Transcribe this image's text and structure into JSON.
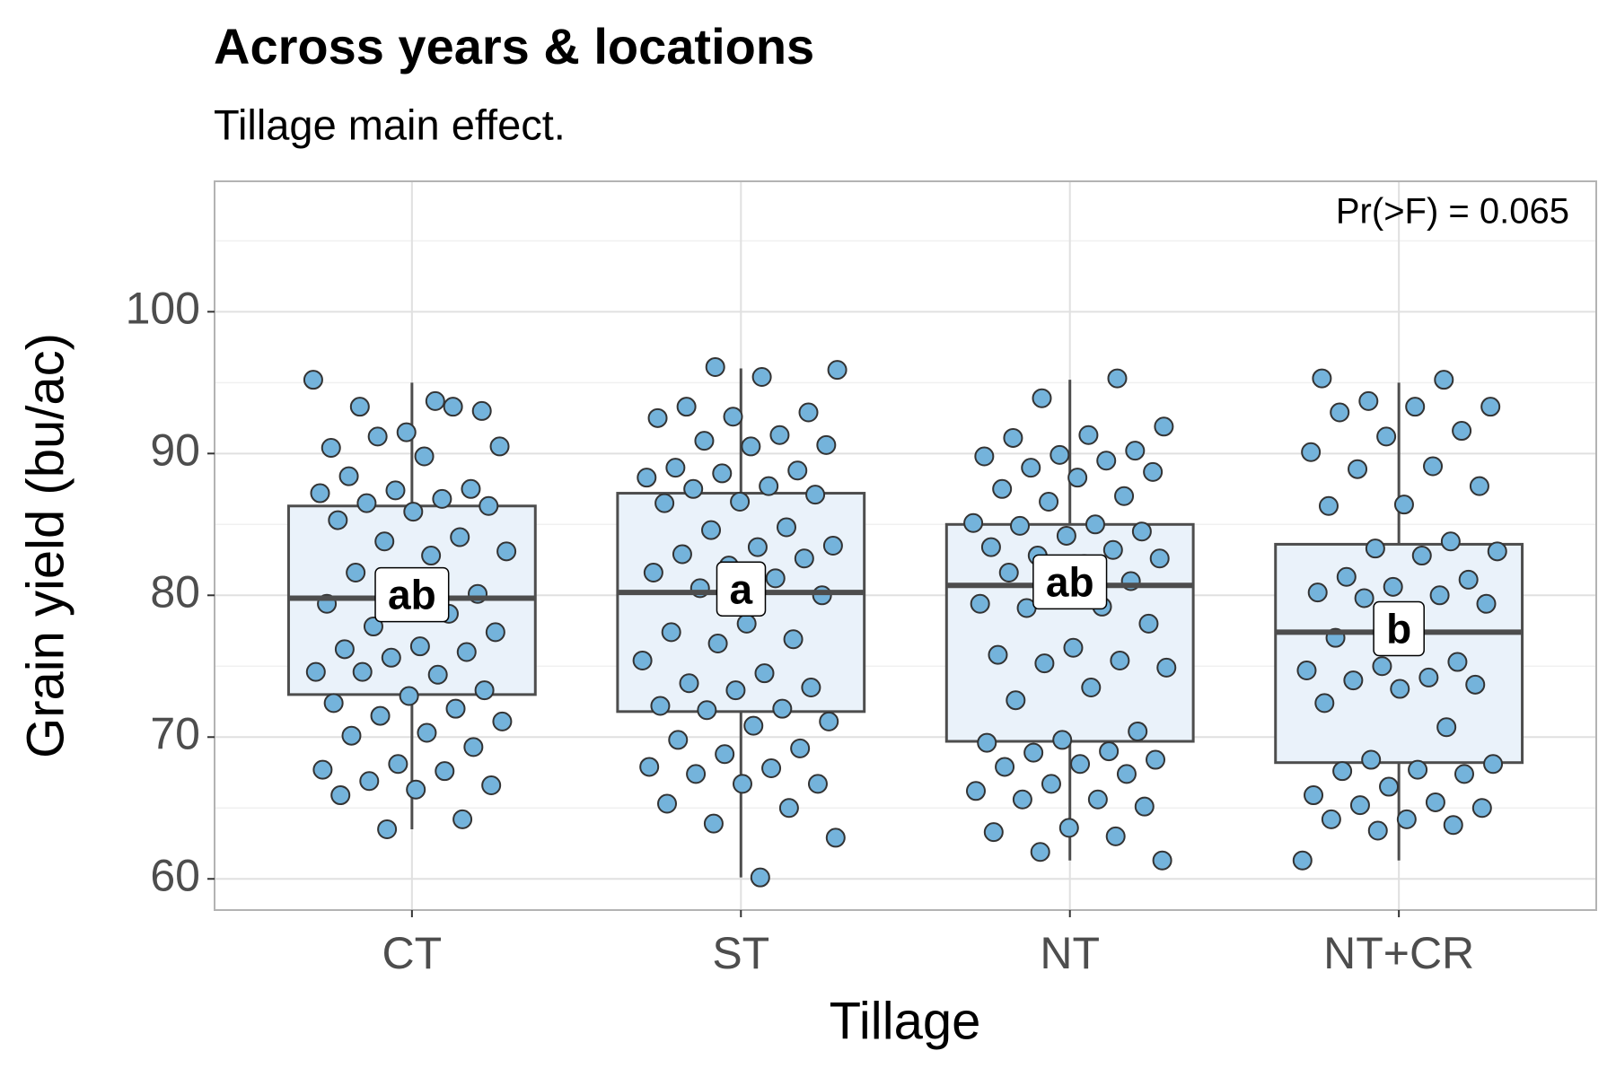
{
  "chart_data": {
    "type": "boxplot",
    "title": "Across years & locations",
    "subtitle": "Tillage main effect.",
    "x_label": "Tillage",
    "y_label": "Grain yield (bu/ac)",
    "annotation": "Pr(>F) = 0.065",
    "categories": [
      "CT",
      "ST",
      "NT",
      "NT+CR"
    ],
    "ylim": [
      57.8,
      109.2
    ],
    "yticks": [
      60,
      70,
      80,
      90,
      100
    ],
    "grid": true,
    "box_color": "#eaf2fa",
    "point_color": "#74b3db",
    "boxes": [
      {
        "whisker_low": 63.5,
        "q1": 73.0,
        "median": 79.8,
        "q3": 86.3,
        "whisker_high": 95.0,
        "letter": "ab"
      },
      {
        "whisker_low": 60.1,
        "q1": 71.8,
        "median": 80.2,
        "q3": 87.2,
        "whisker_high": 96.0,
        "letter": "a"
      },
      {
        "whisker_low": 61.3,
        "q1": 69.7,
        "median": 80.7,
        "q3": 85.0,
        "whisker_high": 95.2,
        "letter": "ab"
      },
      {
        "whisker_low": 61.3,
        "q1": 68.2,
        "median": 77.4,
        "q3": 83.6,
        "whisker_high": 95.0,
        "letter": "b"
      }
    ],
    "points": [
      [
        95.2,
        93.7,
        93.3,
        93.0,
        91.5,
        90.4,
        93.3,
        91.2,
        90.5,
        89.8,
        88.4,
        87.5,
        87.4,
        87.2,
        86.8,
        86.5,
        86.3,
        85.9,
        85.3,
        84.1,
        83.8,
        83.1,
        82.8,
        81.6,
        80.1,
        80.0,
        79.4,
        78.7,
        77.8,
        77.4,
        76.4,
        76.2,
        76.0,
        75.6,
        74.6,
        74.4,
        74.6,
        73.3,
        72.9,
        72.4,
        72.0,
        71.5,
        71.1,
        70.3,
        70.1,
        69.3,
        68.1,
        67.7,
        67.6,
        66.9,
        66.6,
        66.3,
        65.9,
        64.2,
        63.5
      ],
      [
        96.1,
        95.9,
        95.4,
        93.3,
        92.9,
        92.6,
        92.5,
        91.3,
        90.9,
        90.6,
        90.5,
        89.0,
        88.8,
        88.6,
        88.3,
        87.7,
        87.5,
        87.1,
        86.6,
        86.5,
        84.8,
        84.6,
        83.5,
        83.4,
        82.9,
        82.6,
        82.1,
        81.6,
        81.2,
        80.5,
        80.0,
        78.0,
        77.4,
        76.9,
        76.6,
        75.4,
        74.5,
        73.8,
        73.5,
        73.3,
        72.2,
        72.0,
        71.9,
        71.1,
        70.8,
        69.8,
        69.2,
        68.8,
        67.9,
        67.8,
        67.4,
        66.7,
        66.7,
        65.3,
        65.0,
        63.9,
        62.9,
        60.1
      ],
      [
        95.3,
        93.9,
        91.9,
        91.3,
        91.1,
        90.2,
        89.9,
        89.8,
        89.5,
        89.0,
        88.7,
        88.3,
        87.5,
        87.0,
        86.6,
        85.1,
        85.0,
        84.9,
        84.5,
        84.2,
        83.4,
        83.2,
        82.8,
        82.6,
        82.2,
        81.6,
        81.0,
        80.7,
        79.4,
        79.2,
        79.1,
        78.0,
        76.3,
        75.8,
        75.4,
        75.2,
        74.9,
        73.5,
        72.6,
        70.4,
        69.8,
        69.6,
        69.0,
        68.9,
        68.4,
        68.1,
        67.9,
        67.4,
        66.7,
        66.2,
        65.6,
        65.6,
        65.1,
        63.6,
        63.3,
        63.0,
        61.9,
        61.3
      ],
      [
        95.3,
        95.2,
        93.7,
        93.3,
        93.3,
        92.9,
        91.6,
        91.2,
        90.1,
        89.1,
        88.9,
        87.7,
        86.4,
        86.3,
        83.8,
        83.3,
        83.1,
        82.8,
        81.3,
        81.1,
        80.6,
        80.2,
        80.0,
        79.8,
        79.4,
        77.5,
        77.0,
        75.3,
        75.0,
        74.7,
        74.2,
        74.0,
        73.7,
        73.4,
        72.4,
        70.7,
        68.4,
        68.1,
        67.7,
        67.6,
        67.4,
        66.5,
        65.9,
        65.4,
        65.2,
        65.0,
        64.2,
        64.2,
        63.8,
        63.4,
        61.3
      ]
    ]
  }
}
